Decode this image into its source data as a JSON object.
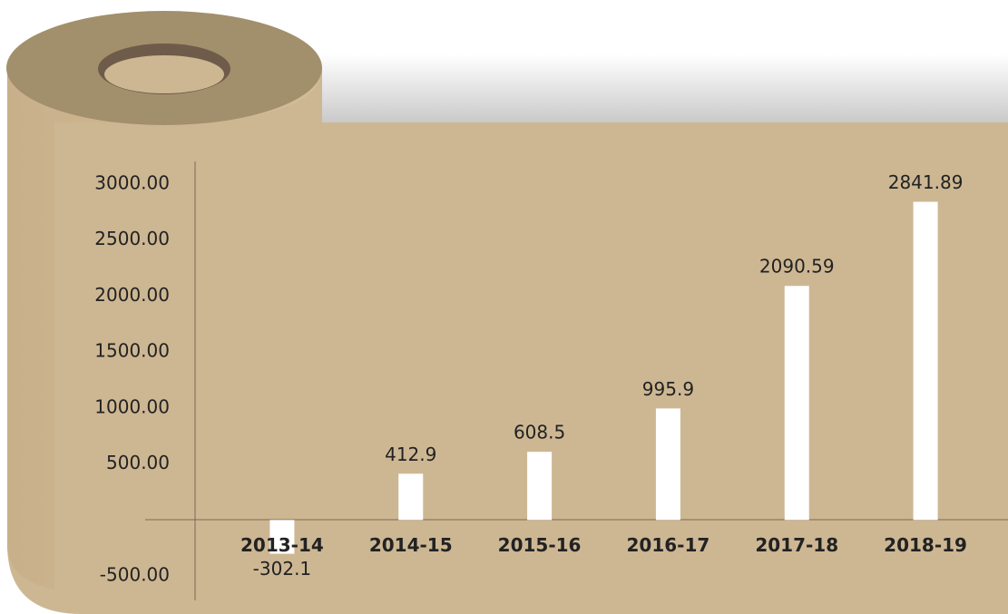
{
  "chart_data": {
    "type": "bar",
    "categories": [
      "2013-14",
      "2014-15",
      "2015-16",
      "2016-17",
      "2017-18",
      "2018-19"
    ],
    "values": [
      -302.1,
      412.9,
      608.5,
      995.9,
      2090.59,
      2841.89
    ],
    "color": "#ffffff",
    "ylim": [
      -500,
      3000
    ],
    "yticks": [
      {
        "value": -500,
        "label": "-500.00"
      },
      {
        "value": 500,
        "label": "500.00"
      },
      {
        "value": 1000,
        "label": "1000.00"
      },
      {
        "value": 1500,
        "label": "1500.00"
      },
      {
        "value": 2000,
        "label": "2000.00"
      },
      {
        "value": 2500,
        "label": "2500.00"
      },
      {
        "value": 3000,
        "label": "3000.00"
      }
    ],
    "grid": false
  }
}
